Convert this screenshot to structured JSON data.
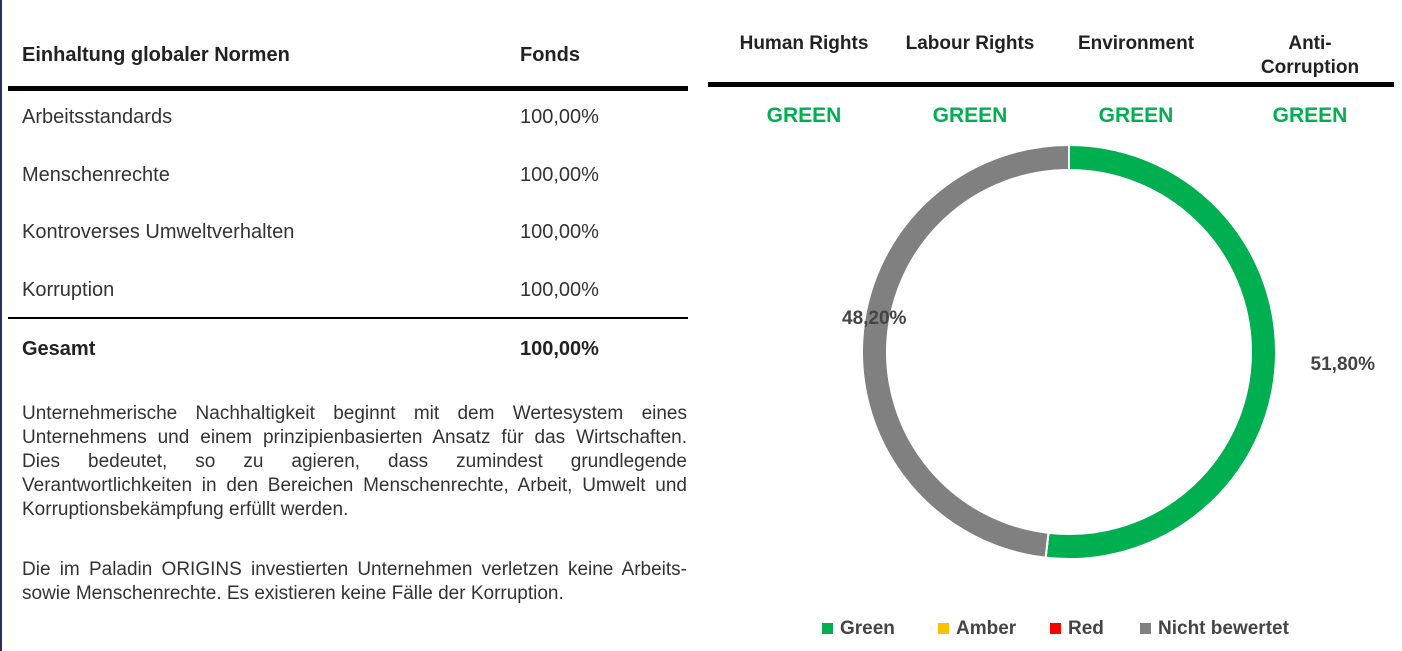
{
  "table": {
    "header": [
      "Einhaltung globaler Normen",
      "Fonds"
    ],
    "rows": [
      [
        "Arbeitsstandards",
        "100,00%"
      ],
      [
        "Menschenrechte",
        "100,00%"
      ],
      [
        "Kontroverses Umweltverhalten",
        "100,00%"
      ],
      [
        "Korruption",
        "100,00%"
      ]
    ],
    "total": [
      "Gesamt",
      "100,00%"
    ]
  },
  "paragraphs": [
    "Unternehmerische Nachhaltigkeit beginnt mit dem Wertesystem eines Unternehmens und einem prinzipienbasierten Ansatz für das Wirtschaften. Dies bedeutet, so zu agieren, dass zumindest grundlegende Verantwortlichkeiten in den Bereichen Menschenrechte, Arbeit, Umwelt und Korruptionsbekämpfung erfüllt werden.",
    "Die im Paladin ORIGINS investierten Unternehmen verletzen keine Arbeits- sowie Menschenrechte. Es existieren keine Fälle der Korruption."
  ],
  "norms": {
    "headers": [
      "Human Rights",
      "Labour Rights",
      "Environment",
      "Anti-Corruption"
    ],
    "statuses": [
      "GREEN",
      "GREEN",
      "GREEN",
      "GREEN"
    ],
    "status_color": "#00b050"
  },
  "chart_data": {
    "type": "donut",
    "categories": [
      "Green",
      "Amber",
      "Red",
      "Nicht bewertet"
    ],
    "values": [
      51.8,
      0,
      0,
      48.2
    ],
    "value_labels": [
      "51,80%",
      null,
      null,
      "48,20%"
    ],
    "colors": [
      "#00b050",
      "#ffc000",
      "#ff0000",
      "#808080"
    ],
    "legend": "bottom"
  }
}
